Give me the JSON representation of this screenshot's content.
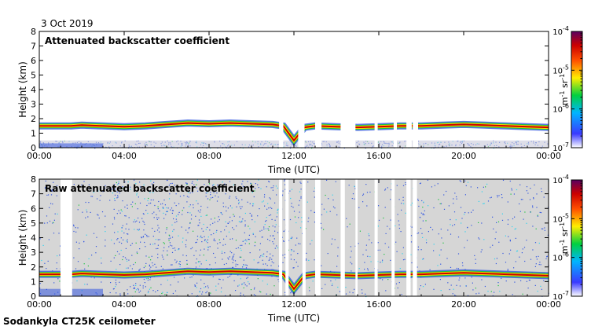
{
  "date": "3 Oct 2019",
  "instrument": "Sodankyla CT25K ceilometer",
  "colors": {
    "background_fill": "#d6d6d6",
    "profile_top": "#cc0000",
    "profile_mid": "#ffd400",
    "profile_low": "#16c33c",
    "noise": "#3457e0"
  },
  "chart_data": [
    {
      "type": "heatmap",
      "title": "Attenuated backscatter coefficient",
      "xlabel": "Time (UTC)",
      "ylabel": "Height (km)",
      "x_ticks": [
        "00:00",
        "04:00",
        "08:00",
        "12:00",
        "16:00",
        "20:00",
        "00:00"
      ],
      "y_ticks": [
        "0",
        "1",
        "2",
        "3",
        "4",
        "5",
        "6",
        "7",
        "8"
      ],
      "xlim_hours": [
        0,
        24
      ],
      "ylim_km": [
        0,
        8
      ],
      "colorbar": {
        "label_base": "m",
        "label_exp1": "-1",
        "label_mid": " sr",
        "label_exp2": "-1",
        "scale": "log",
        "ticks": [
          {
            "base": "10",
            "exp": "-4"
          },
          {
            "base": "10",
            "exp": "-5"
          },
          {
            "base": "10",
            "exp": "-6"
          },
          {
            "base": "10",
            "exp": "-7"
          }
        ],
        "range": [
          1e-07,
          0.0001
        ]
      },
      "cloud_base_km": {
        "hours": [
          0,
          1.5,
          2,
          3,
          4,
          5,
          6,
          7,
          8,
          9,
          10,
          11,
          11.5,
          12,
          12.5,
          13,
          14,
          15,
          16,
          17,
          18,
          19,
          20,
          21,
          22,
          23,
          24
        ],
        "heights": [
          1.5,
          1.5,
          1.55,
          1.5,
          1.45,
          1.5,
          1.6,
          1.7,
          1.65,
          1.7,
          1.65,
          1.6,
          1.5,
          0.5,
          1.4,
          1.5,
          1.45,
          1.4,
          1.45,
          1.5,
          1.5,
          1.55,
          1.6,
          1.55,
          1.5,
          1.45,
          1.4
        ]
      },
      "gaps_hours": [
        [
          11.3,
          11.5
        ],
        [
          12.2,
          12.5
        ],
        [
          13.0,
          13.3
        ],
        [
          14.2,
          14.9
        ],
        [
          15.8,
          15.95
        ],
        [
          16.7,
          16.85
        ],
        [
          17.3,
          17.55
        ],
        [
          17.6,
          17.85
        ]
      ]
    },
    {
      "type": "heatmap",
      "title": "Raw attenuated backscatter coefficient",
      "xlabel": "Time (UTC)",
      "ylabel": "Height (km)",
      "x_ticks": [
        "00:00",
        "04:00",
        "08:00",
        "12:00",
        "16:00",
        "20:00",
        "00:00"
      ],
      "y_ticks": [
        "0",
        "1",
        "2",
        "3",
        "4",
        "5",
        "6",
        "7",
        "8"
      ],
      "xlim_hours": [
        0,
        24
      ],
      "ylim_km": [
        0,
        8
      ],
      "colorbar": {
        "label_base": "m",
        "label_exp1": "-1",
        "label_mid": " sr",
        "label_exp2": "-1",
        "scale": "log",
        "ticks": [
          {
            "base": "10",
            "exp": "-4"
          },
          {
            "base": "10",
            "exp": "-5"
          },
          {
            "base": "10",
            "exp": "-6"
          },
          {
            "base": "10",
            "exp": "-7"
          }
        ],
        "range": [
          1e-07,
          0.0001
        ]
      },
      "cloud_base_km": {
        "hours": [
          0,
          1.5,
          2,
          3,
          4,
          5,
          6,
          7,
          8,
          9,
          10,
          11,
          11.5,
          12,
          12.5,
          13,
          14,
          15,
          16,
          17,
          18,
          19,
          20,
          21,
          22,
          23,
          24
        ],
        "heights": [
          1.5,
          1.5,
          1.55,
          1.5,
          1.45,
          1.5,
          1.6,
          1.7,
          1.65,
          1.7,
          1.65,
          1.6,
          1.5,
          0.5,
          1.4,
          1.5,
          1.45,
          1.4,
          1.45,
          1.5,
          1.5,
          1.55,
          1.6,
          1.55,
          1.5,
          1.45,
          1.4
        ]
      },
      "gaps_hours": [
        [
          1.0,
          1.55
        ],
        [
          11.3,
          11.45
        ],
        [
          11.6,
          11.75
        ],
        [
          12.4,
          12.55
        ],
        [
          13.0,
          13.25
        ],
        [
          14.2,
          14.4
        ],
        [
          14.9,
          15.0
        ],
        [
          15.8,
          15.95
        ],
        [
          16.6,
          16.75
        ],
        [
          17.3,
          17.5
        ],
        [
          17.6,
          17.8
        ]
      ]
    }
  ]
}
